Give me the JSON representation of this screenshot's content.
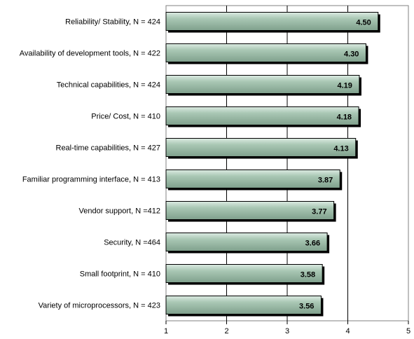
{
  "chart_data": {
    "type": "bar",
    "orientation": "horizontal",
    "categories": [
      "Reliability/ Stability, N = 424",
      "Availability of development tools, N = 422",
      "Technical capabilities, N = 424",
      "Price/ Cost, N = 410",
      "Real-time capabilities, N = 427",
      "Familiar programming interface, N = 413",
      "Vendor support, N =412",
      "Security, N =464",
      "Small footprint, N = 410",
      "Variety of microprocessors, N = 423"
    ],
    "values": [
      4.5,
      4.3,
      4.19,
      4.18,
      4.13,
      3.87,
      3.77,
      3.66,
      3.58,
      3.56
    ],
    "value_labels": [
      "4.50",
      "4.30",
      "4.19",
      "4.18",
      "4.13",
      "3.87",
      "3.77",
      "3.66",
      "3.58",
      "3.56"
    ],
    "xlim": [
      1,
      5
    ],
    "x_ticks": [
      "1",
      "2",
      "3",
      "4",
      "5"
    ],
    "grid": "vertical",
    "legend": "none",
    "colors": {
      "bar_light": "#dcebe2",
      "bar_mid": "#a9c7b4",
      "bar_dark": "#7fa08c",
      "bar_shadow": "#000000"
    }
  }
}
